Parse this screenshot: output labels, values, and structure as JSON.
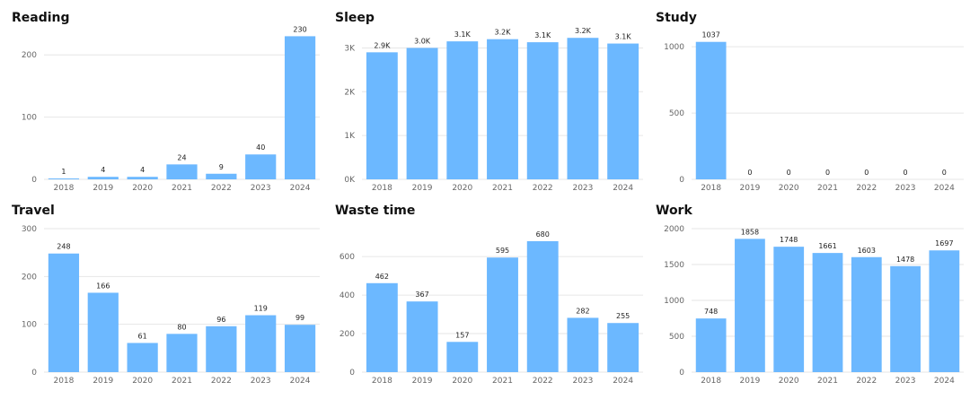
{
  "colors": {
    "bar": "#6cb8ff",
    "grid": "#e6e6e6",
    "tick_text": "#666666",
    "title_text": "#111111"
  },
  "chart_data": [
    {
      "type": "bar",
      "title": "Reading",
      "categories": [
        "2018",
        "2019",
        "2020",
        "2021",
        "2022",
        "2023",
        "2024"
      ],
      "values": [
        1,
        4,
        4,
        24,
        9,
        40,
        230
      ],
      "value_labels": [
        "1",
        "4",
        "4",
        "24",
        "9",
        "40",
        "230"
      ],
      "yticks": [
        0,
        100,
        200
      ],
      "ytick_labels": [
        "0",
        "100",
        "200"
      ],
      "ylim": [
        0,
        245
      ],
      "grid": true
    },
    {
      "type": "bar",
      "title": "Sleep",
      "categories": [
        "2018",
        "2019",
        "2020",
        "2021",
        "2022",
        "2023",
        "2024"
      ],
      "values": [
        2900,
        3000,
        3150,
        3200,
        3130,
        3230,
        3100
      ],
      "value_labels": [
        "2.9K",
        "3.0K",
        "3.1K",
        "3.2K",
        "3.1K",
        "3.2K",
        "3.1K"
      ],
      "yticks": [
        0,
        1000,
        2000,
        3000
      ],
      "ytick_labels": [
        "0K",
        "1K",
        "2K",
        "3K"
      ],
      "ylim": [
        0,
        3480
      ],
      "grid": true
    },
    {
      "type": "bar",
      "title": "Study",
      "categories": [
        "2018",
        "2019",
        "2020",
        "2021",
        "2022",
        "2023",
        "2024"
      ],
      "values": [
        1037,
        0,
        0,
        0,
        0,
        0,
        0
      ],
      "value_labels": [
        "1037",
        "0",
        "0",
        "0",
        "0",
        "0",
        "0"
      ],
      "yticks": [
        0,
        500,
        1000
      ],
      "ytick_labels": [
        "0",
        "500",
        "1000"
      ],
      "ylim": [
        0,
        1150
      ],
      "grid": true
    },
    {
      "type": "bar",
      "title": "Travel",
      "categories": [
        "2018",
        "2019",
        "2020",
        "2021",
        "2022",
        "2023",
        "2024"
      ],
      "values": [
        248,
        166,
        61,
        80,
        96,
        119,
        99
      ],
      "value_labels": [
        "248",
        "166",
        "61",
        "80",
        "96",
        "119",
        "99"
      ],
      "yticks": [
        0,
        100,
        200,
        300
      ],
      "ytick_labels": [
        "0",
        "100",
        "200",
        "300"
      ],
      "ylim": [
        0,
        300
      ],
      "grid": true
    },
    {
      "type": "bar",
      "title": "Waste time",
      "categories": [
        "2018",
        "2019",
        "2020",
        "2021",
        "2022",
        "2023",
        "2024"
      ],
      "values": [
        462,
        367,
        157,
        595,
        680,
        282,
        255
      ],
      "value_labels": [
        "462",
        "367",
        "157",
        "595",
        "680",
        "282",
        "255"
      ],
      "yticks": [
        0,
        200,
        400,
        600
      ],
      "ytick_labels": [
        "0",
        "200",
        "400",
        "600"
      ],
      "ylim": [
        0,
        745
      ],
      "grid": true
    },
    {
      "type": "bar",
      "title": "Work",
      "categories": [
        "2018",
        "2019",
        "2020",
        "2021",
        "2022",
        "2023",
        "2024"
      ],
      "values": [
        748,
        1858,
        1748,
        1661,
        1603,
        1478,
        1697
      ],
      "value_labels": [
        "748",
        "1858",
        "1748",
        "1661",
        "1603",
        "1478",
        "1697"
      ],
      "yticks": [
        0,
        500,
        1000,
        1500,
        2000
      ],
      "ytick_labels": [
        "0",
        "500",
        "1000",
        "1500",
        "2000"
      ],
      "ylim": [
        0,
        2000
      ],
      "grid": true
    }
  ]
}
